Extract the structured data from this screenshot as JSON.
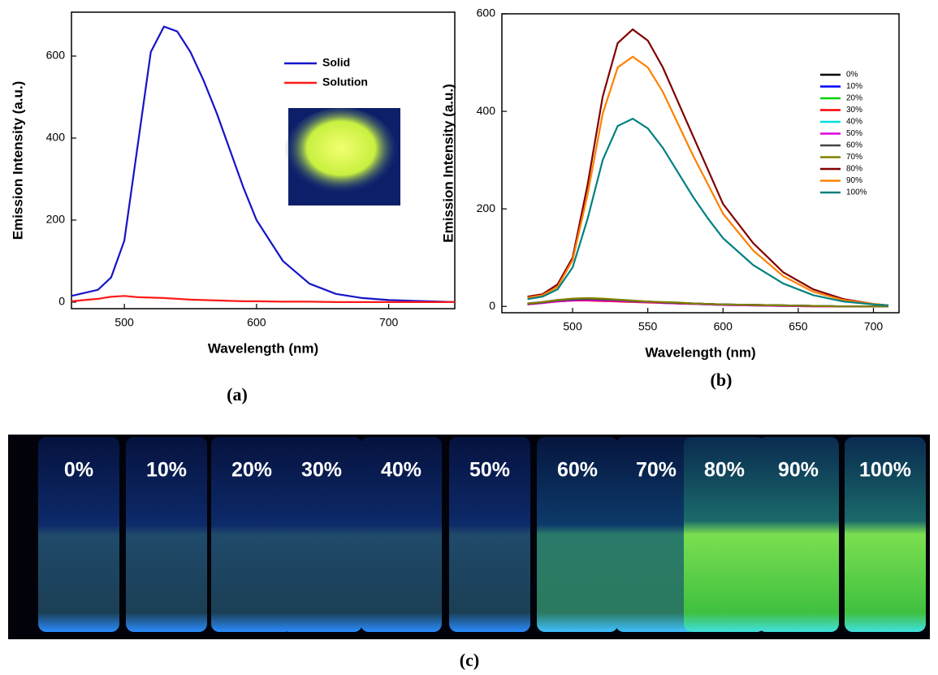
{
  "chart_data": [
    {
      "type": "line",
      "xlabel": "Wavelength (nm)",
      "ylabel": "Emission Intensity (a.u.)",
      "x": [
        460,
        480,
        490,
        500,
        510,
        520,
        530,
        540,
        550,
        560,
        570,
        580,
        590,
        600,
        620,
        640,
        660,
        680,
        700,
        750
      ],
      "series": [
        {
          "name": "Solid",
          "color": "#1414c8",
          "values": [
            15,
            30,
            60,
            150,
            380,
            610,
            672,
            660,
            610,
            540,
            460,
            370,
            280,
            200,
            100,
            45,
            20,
            10,
            5,
            0
          ]
        },
        {
          "name": "Solution",
          "color": "#ff1a1a",
          "values": [
            2,
            8,
            13,
            15,
            12,
            11,
            10,
            8,
            6,
            5,
            4,
            3,
            2,
            2,
            1,
            1,
            0,
            0,
            0,
            0
          ]
        }
      ],
      "xlim": [
        460,
        750
      ],
      "xticks": [
        500,
        600,
        700
      ],
      "ylim": [
        -16,
        707
      ],
      "yticks": [
        0,
        200,
        400,
        600
      ]
    },
    {
      "type": "line",
      "xlabel": "Wavelength (nm)",
      "ylabel": "Emission Intensity (a.u.)",
      "x": [
        470,
        480,
        490,
        500,
        510,
        520,
        530,
        540,
        550,
        560,
        570,
        580,
        590,
        600,
        620,
        640,
        660,
        680,
        700,
        710
      ],
      "series": [
        {
          "name": "0%",
          "color": "#000000",
          "values": [
            5,
            8,
            12,
            14,
            14,
            13,
            12,
            11,
            10,
            8,
            7,
            6,
            5,
            4,
            3,
            2,
            1,
            0,
            0,
            0
          ]
        },
        {
          "name": "10%",
          "color": "#0000ff",
          "values": [
            6,
            9,
            13,
            15,
            15,
            14,
            12,
            11,
            9,
            8,
            7,
            6,
            5,
            4,
            3,
            2,
            1,
            0,
            0,
            0
          ]
        },
        {
          "name": "20%",
          "color": "#00d000",
          "values": [
            5,
            8,
            11,
            13,
            13,
            12,
            11,
            10,
            9,
            8,
            6,
            5,
            4,
            3,
            2,
            1,
            1,
            0,
            0,
            0
          ]
        },
        {
          "name": "30%",
          "color": "#ff0000",
          "values": [
            4,
            7,
            10,
            12,
            12,
            11,
            10,
            9,
            8,
            7,
            6,
            5,
            4,
            3,
            2,
            1,
            0,
            0,
            0,
            0
          ]
        },
        {
          "name": "40%",
          "color": "#00e0e0",
          "values": [
            5,
            8,
            11,
            13,
            14,
            13,
            12,
            10,
            9,
            8,
            7,
            5,
            4,
            3,
            2,
            1,
            1,
            0,
            0,
            0
          ]
        },
        {
          "name": "50%",
          "color": "#e000e0",
          "values": [
            4,
            7,
            10,
            12,
            13,
            12,
            11,
            10,
            9,
            7,
            6,
            5,
            4,
            3,
            2,
            1,
            0,
            0,
            0,
            0
          ]
        },
        {
          "name": "60%",
          "color": "#444444",
          "values": [
            5,
            8,
            12,
            14,
            15,
            14,
            13,
            11,
            10,
            8,
            7,
            6,
            5,
            4,
            3,
            2,
            1,
            0,
            0,
            0
          ]
        },
        {
          "name": "70%",
          "color": "#808000",
          "values": [
            6,
            9,
            13,
            16,
            17,
            16,
            14,
            12,
            10,
            9,
            8,
            6,
            5,
            4,
            3,
            2,
            1,
            0,
            0,
            0
          ]
        },
        {
          "name": "80%",
          "color": "#800000",
          "values": [
            20,
            25,
            45,
            100,
            250,
            430,
            540,
            568,
            545,
            490,
            420,
            350,
            280,
            210,
            130,
            70,
            35,
            15,
            5,
            2
          ]
        },
        {
          "name": "90%",
          "color": "#ff8000",
          "values": [
            18,
            23,
            40,
            95,
            230,
            395,
            490,
            512,
            490,
            440,
            375,
            310,
            250,
            190,
            115,
            62,
            30,
            13,
            5,
            2
          ]
        },
        {
          "name": "100%",
          "color": "#008080",
          "values": [
            15,
            20,
            35,
            80,
            180,
            300,
            370,
            385,
            365,
            325,
            275,
            225,
            180,
            140,
            85,
            47,
            23,
            10,
            4,
            2
          ]
        }
      ],
      "xlim": [
        453,
        717
      ],
      "xticks": [
        500,
        550,
        600,
        650,
        700
      ],
      "ylim": [
        -13,
        600
      ],
      "yticks": [
        0,
        200,
        400,
        600
      ]
    }
  ],
  "panel_labels": [
    "(a)",
    "(b)",
    "(c)"
  ],
  "photo": {
    "labels": [
      "0%",
      "10%",
      "20%",
      "30%",
      "40%",
      "50%",
      "60%",
      "70%",
      "80%",
      "90%",
      "100%"
    ]
  }
}
